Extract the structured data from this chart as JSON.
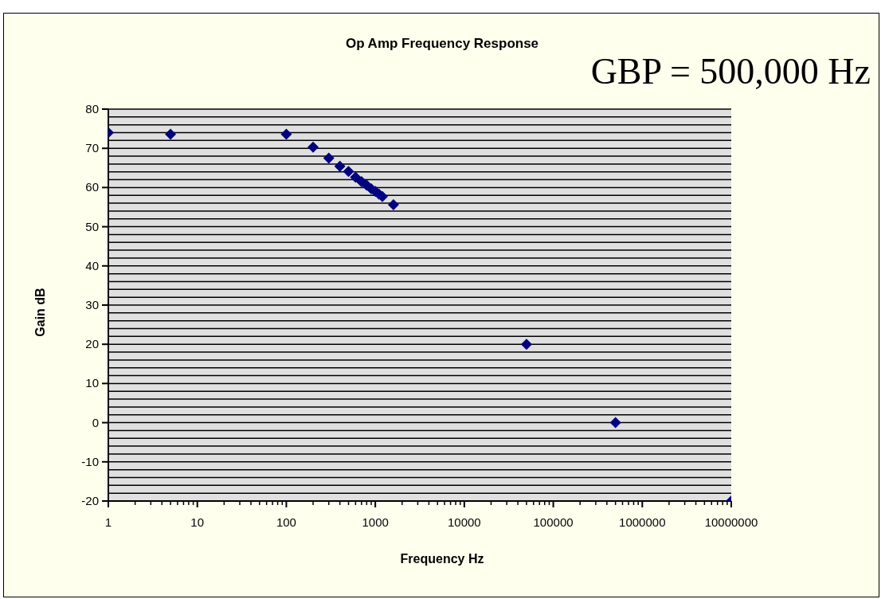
{
  "chart_data": {
    "type": "scatter",
    "title": "Op Amp Frequency Response",
    "xlabel": "Frequency Hz",
    "ylabel": "Gain dB",
    "annotations": [
      "GBP = 500,000 Hz"
    ],
    "log": "x",
    "grid": "y",
    "marker": "diamond",
    "legend": false,
    "x": [
      1,
      5,
      100,
      200,
      300,
      400,
      500,
      600,
      700,
      800,
      900,
      1000,
      1100,
      1200,
      1300,
      1400,
      1500,
      1600,
      50000,
      500000,
      10000000
    ],
    "series": [
      {
        "color": "#000080",
        "values": [
          74,
          73.6,
          73.6,
          70.3,
          67.5,
          65.4,
          64.1,
          62.6,
          61.5,
          60.6,
          59.7,
          59,
          58.3,
          57.7,
          null,
          null,
          null,
          55.6,
          20,
          0,
          -20
        ]
      }
    ],
    "xlim": [
      1,
      10000000
    ],
    "xticks": [
      1,
      {
        "value": 2,
        "label": null
      },
      {
        "value": 3,
        "label": null
      },
      {
        "value": 4,
        "label": null
      },
      {
        "value": 5,
        "label": null
      },
      {
        "value": 6,
        "label": null
      },
      {
        "value": 7,
        "label": null
      },
      {
        "value": 8,
        "label": null
      },
      {
        "value": 9,
        "label": null
      },
      10,
      {
        "value": 20,
        "label": null
      },
      {
        "value": 30,
        "label": null
      },
      {
        "value": 40,
        "label": null
      },
      {
        "value": 50,
        "label": null
      },
      {
        "value": 60,
        "label": null
      },
      {
        "value": 70,
        "label": null
      },
      {
        "value": 80,
        "label": null
      },
      {
        "value": 90,
        "label": null
      },
      100,
      {
        "value": 200,
        "label": null
      },
      {
        "value": 300,
        "label": null
      },
      {
        "value": 400,
        "label": null
      },
      {
        "value": 500,
        "label": null
      },
      {
        "value": 600,
        "label": null
      },
      {
        "value": 700,
        "label": null
      },
      {
        "value": 800,
        "label": null
      },
      {
        "value": 900,
        "label": null
      },
      1000,
      {
        "value": 2000,
        "label": null
      },
      {
        "value": 3000,
        "label": null
      },
      {
        "value": 4000,
        "label": null
      },
      {
        "value": 5000,
        "label": null
      },
      {
        "value": 6000,
        "label": null
      },
      {
        "value": 7000,
        "label": null
      },
      {
        "value": 8000,
        "label": null
      },
      {
        "value": 9000,
        "label": null
      },
      10000,
      {
        "value": 20000,
        "label": null
      },
      {
        "value": 30000,
        "label": null
      },
      {
        "value": 40000,
        "label": null
      },
      {
        "value": 50000,
        "label": null
      },
      {
        "value": 60000,
        "label": null
      },
      {
        "value": 70000,
        "label": null
      },
      {
        "value": 80000,
        "label": null
      },
      {
        "value": 90000,
        "label": null
      },
      100000,
      {
        "value": 200000,
        "label": null
      },
      {
        "value": 300000,
        "label": null
      },
      {
        "value": 400000,
        "label": null
      },
      {
        "value": 500000,
        "label": null
      },
      {
        "value": 600000,
        "label": null
      },
      {
        "value": 700000,
        "label": null
      },
      {
        "value": 800000,
        "label": null
      },
      {
        "value": 900000,
        "label": null
      },
      1000000,
      {
        "value": 2000000,
        "label": null
      },
      {
        "value": 3000000,
        "label": null
      },
      {
        "value": 4000000,
        "label": null
      },
      {
        "value": 5000000,
        "label": null
      },
      {
        "value": 6000000,
        "label": null
      },
      {
        "value": 7000000,
        "label": null
      },
      {
        "value": 8000000,
        "label": null
      },
      {
        "value": 9000000,
        "label": null
      },
      10000000
    ],
    "ylim": [
      -20,
      80
    ],
    "yticks": [
      -20,
      {
        "value": -18,
        "label": null
      },
      {
        "value": -16,
        "label": null
      },
      {
        "value": -14,
        "label": null
      },
      {
        "value": -12,
        "label": null
      },
      -10,
      {
        "value": -8,
        "label": null
      },
      {
        "value": -6,
        "label": null
      },
      {
        "value": -4,
        "label": null
      },
      {
        "value": -2,
        "label": null
      },
      0,
      {
        "value": 2,
        "label": null
      },
      {
        "value": 4,
        "label": null
      },
      {
        "value": 6,
        "label": null
      },
      {
        "value": 8,
        "label": null
      },
      10,
      {
        "value": 12,
        "label": null
      },
      {
        "value": 14,
        "label": null
      },
      {
        "value": 16,
        "label": null
      },
      {
        "value": 18,
        "label": null
      },
      20,
      {
        "value": 22,
        "label": null
      },
      {
        "value": 24,
        "label": null
      },
      {
        "value": 26,
        "label": null
      },
      {
        "value": 28,
        "label": null
      },
      30,
      {
        "value": 32,
        "label": null
      },
      {
        "value": 34,
        "label": null
      },
      {
        "value": 36,
        "label": null
      },
      {
        "value": 38,
        "label": null
      },
      40,
      {
        "value": 42,
        "label": null
      },
      {
        "value": 44,
        "label": null
      },
      {
        "value": 46,
        "label": null
      },
      {
        "value": 48,
        "label": null
      },
      50,
      {
        "value": 52,
        "label": null
      },
      {
        "value": 54,
        "label": null
      },
      {
        "value": 56,
        "label": null
      },
      {
        "value": 58,
        "label": null
      },
      60,
      {
        "value": 62,
        "label": null
      },
      {
        "value": 64,
        "label": null
      },
      {
        "value": 66,
        "label": null
      },
      {
        "value": 68,
        "label": null
      },
      70,
      {
        "value": 72,
        "label": null
      },
      {
        "value": 74,
        "label": null
      },
      {
        "value": 76,
        "label": null
      },
      {
        "value": 78,
        "label": null
      },
      80
    ]
  }
}
